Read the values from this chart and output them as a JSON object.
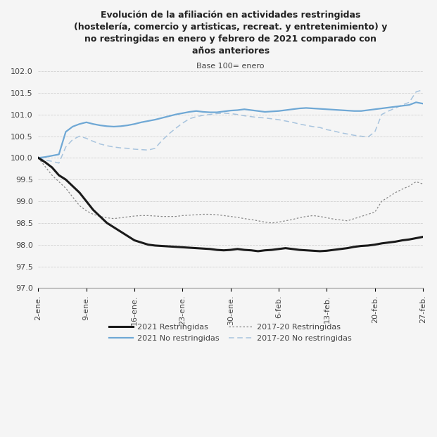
{
  "title_line1": "Evolución de la afiliación en actividades restringidas",
  "title_line2": "(hostelería, comercio y artisticas, recreat. y entretenimiento) y",
  "title_line3": "no restringidas en enero y febrero de 2021 comparado con",
  "title_line4": "años anteriores",
  "subtitle": "Base 100= enero",
  "xtick_labels": [
    "2-ene.",
    "9-ene.",
    "16-ene.",
    "23-ene.",
    "30-ene.",
    "6-feb.",
    "13-feb.",
    "20-feb.",
    "27-feb."
  ],
  "ylim": [
    97.0,
    102.0
  ],
  "yticks": [
    97.0,
    97.5,
    98.0,
    98.5,
    99.0,
    99.5,
    100.0,
    100.5,
    101.0,
    101.5,
    102.0
  ],
  "n_points": 57,
  "series_2021_restringidas": [
    100.0,
    99.9,
    99.78,
    99.6,
    99.5,
    99.35,
    99.2,
    99.0,
    98.8,
    98.65,
    98.5,
    98.4,
    98.3,
    98.2,
    98.1,
    98.05,
    98.0,
    97.98,
    97.97,
    97.96,
    97.95,
    97.94,
    97.93,
    97.92,
    97.91,
    97.9,
    97.88,
    97.87,
    97.88,
    97.9,
    97.88,
    97.87,
    97.85,
    97.87,
    97.88,
    97.9,
    97.92,
    97.9,
    97.88,
    97.87,
    97.86,
    97.85,
    97.86,
    97.88,
    97.9,
    97.92,
    97.95,
    97.97,
    97.98,
    98.0,
    98.03,
    98.05,
    98.07,
    98.1,
    98.12,
    98.15,
    98.18
  ],
  "series_2021_no_restringidas": [
    100.0,
    100.02,
    100.05,
    100.08,
    100.6,
    100.72,
    100.78,
    100.82,
    100.78,
    100.75,
    100.73,
    100.72,
    100.73,
    100.75,
    100.78,
    100.82,
    100.85,
    100.88,
    100.92,
    100.96,
    101.0,
    101.03,
    101.06,
    101.08,
    101.06,
    101.05,
    101.05,
    101.07,
    101.09,
    101.1,
    101.12,
    101.1,
    101.08,
    101.06,
    101.07,
    101.08,
    101.1,
    101.12,
    101.14,
    101.15,
    101.14,
    101.13,
    101.12,
    101.11,
    101.1,
    101.09,
    101.08,
    101.08,
    101.1,
    101.12,
    101.14,
    101.16,
    101.18,
    101.2,
    101.22,
    101.28,
    101.25
  ],
  "series_1720_restringidas": [
    100.0,
    99.8,
    99.6,
    99.45,
    99.3,
    99.1,
    98.9,
    98.78,
    98.7,
    98.65,
    98.62,
    98.6,
    98.62,
    98.64,
    98.66,
    98.67,
    98.67,
    98.66,
    98.65,
    98.65,
    98.65,
    98.67,
    98.68,
    98.69,
    98.7,
    98.7,
    98.69,
    98.67,
    98.65,
    98.63,
    98.6,
    98.58,
    98.55,
    98.52,
    98.5,
    98.52,
    98.55,
    98.58,
    98.62,
    98.65,
    98.67,
    98.65,
    98.62,
    98.59,
    98.57,
    98.55,
    98.6,
    98.65,
    98.7,
    98.75,
    99.0,
    99.1,
    99.2,
    99.28,
    99.35,
    99.45,
    99.4
  ],
  "series_1720_no_restringidas": [
    100.0,
    99.95,
    99.92,
    99.88,
    100.25,
    100.42,
    100.5,
    100.45,
    100.38,
    100.32,
    100.28,
    100.25,
    100.23,
    100.22,
    100.2,
    100.19,
    100.18,
    100.22,
    100.4,
    100.55,
    100.68,
    100.8,
    100.9,
    100.95,
    100.98,
    101.0,
    101.02,
    101.03,
    101.02,
    101.0,
    100.97,
    100.95,
    100.93,
    100.92,
    100.9,
    100.88,
    100.85,
    100.82,
    100.78,
    100.75,
    100.72,
    100.7,
    100.65,
    100.62,
    100.58,
    100.55,
    100.52,
    100.5,
    100.48,
    100.6,
    101.0,
    101.08,
    101.15,
    101.22,
    101.28,
    101.52,
    101.57
  ],
  "color_2021_rest": "#1a1a1a",
  "color_2021_norest": "#6fa8d5",
  "color_1720_rest": "#888888",
  "color_1720_norest": "#a8c4de",
  "legend_labels": [
    "2021 Restringidas",
    "2021 No restringidas",
    "2017-20 Restringidas",
    "2017-20 No restringidas"
  ],
  "background_color": "#f5f5f5",
  "grid_color": "#d0d0d0"
}
